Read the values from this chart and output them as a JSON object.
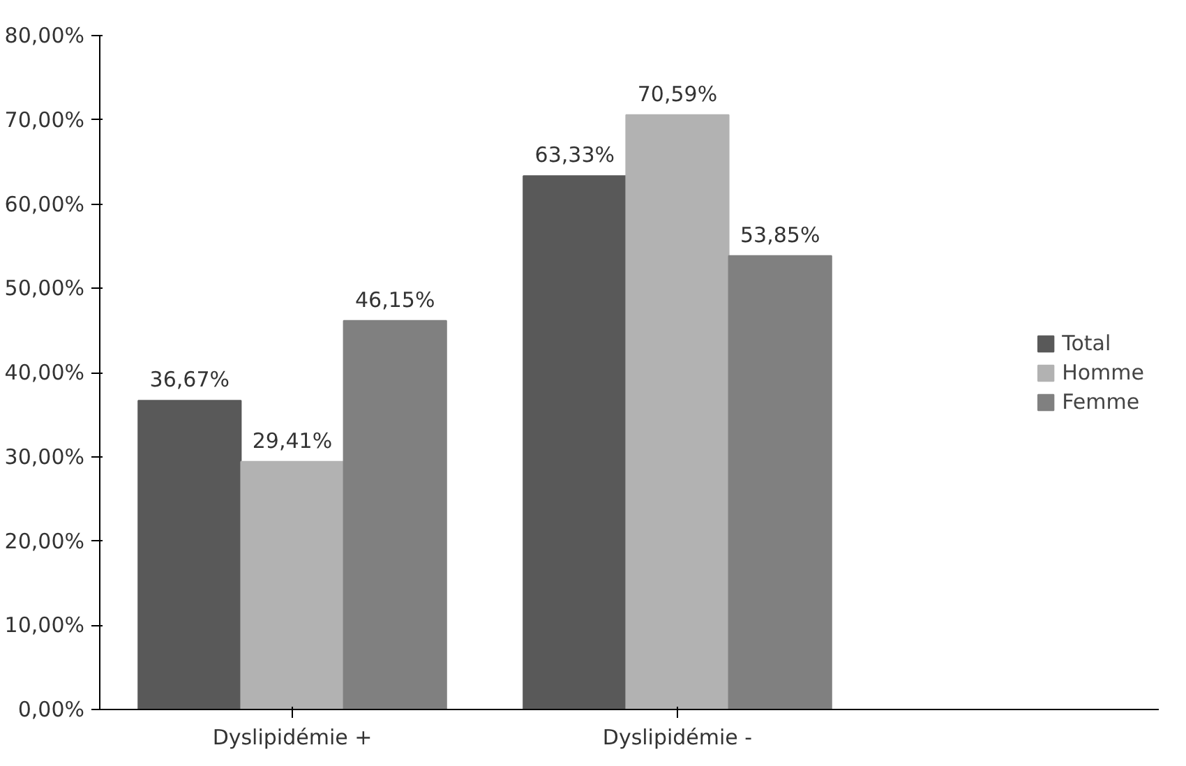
{
  "chart_data": {
    "type": "bar",
    "categories": [
      "Dyslipidémie +",
      "Dyslipidémie -"
    ],
    "series": [
      {
        "name": "Total",
        "color": "#595959",
        "values": [
          36.67,
          63.33
        ],
        "value_labels": [
          "36,67%",
          "63,33%"
        ]
      },
      {
        "name": "Homme",
        "color": "#b2b2b2",
        "values": [
          29.41,
          70.59
        ],
        "value_labels": [
          "29,41%",
          "70,59%"
        ]
      },
      {
        "name": "Femme",
        "color": "#808080",
        "values": [
          46.15,
          53.85
        ],
        "value_labels": [
          "46,15%",
          "53,85%"
        ]
      }
    ],
    "ylim": [
      0,
      80
    ],
    "yticks": [
      {
        "value": 0,
        "label": "0,00%"
      },
      {
        "value": 10,
        "label": "10,00%"
      },
      {
        "value": 20,
        "label": "20,00%"
      },
      {
        "value": 30,
        "label": "30,00%"
      },
      {
        "value": 40,
        "label": "40,00%"
      },
      {
        "value": 50,
        "label": "50,00%"
      },
      {
        "value": 60,
        "label": "60,00%"
      },
      {
        "value": 70,
        "label": "70,00%"
      },
      {
        "value": 80,
        "label": "80,00%"
      }
    ],
    "grid": false,
    "legend": "right"
  }
}
